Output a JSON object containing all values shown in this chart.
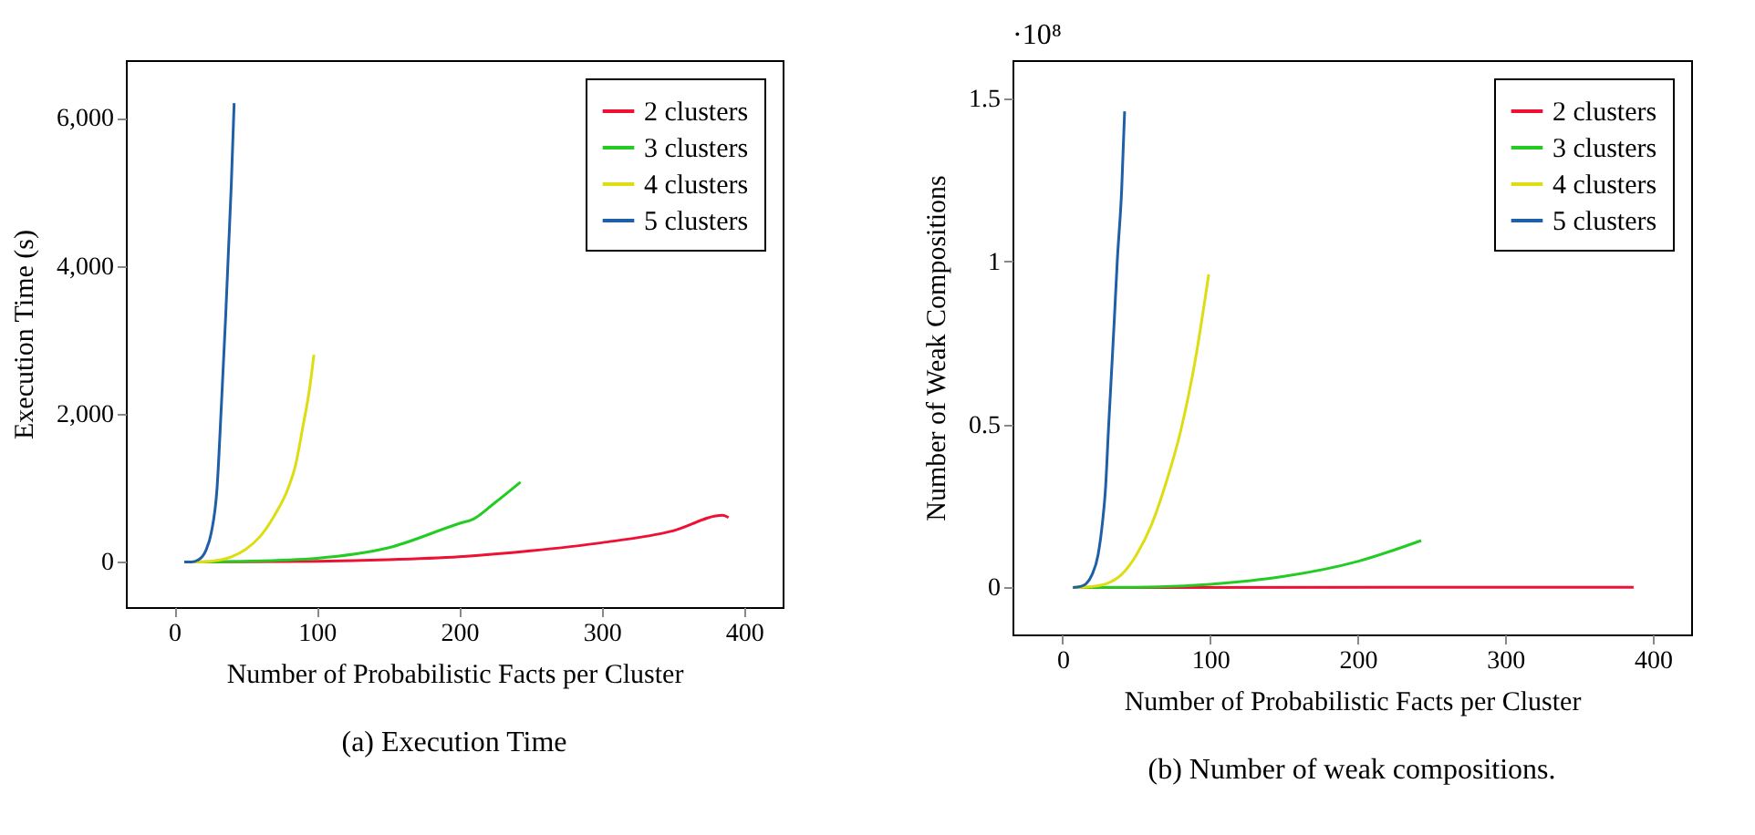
{
  "chart_data": [
    {
      "type": "line",
      "xlabel": "Number of Probabilistic Facts per Cluster",
      "ylabel": "Execution Time (s)",
      "annotations": [
        "(a) Execution Time"
      ],
      "xlim": [
        -34,
        427
      ],
      "ylim": [
        -610,
        6780
      ],
      "xticks": [
        0,
        100,
        200,
        300,
        400
      ],
      "yticks": [
        0,
        {
          "value": 2000,
          "label": "2,000"
        },
        {
          "value": 4000,
          "label": "4,000"
        },
        {
          "value": 6000,
          "label": "6,000"
        }
      ],
      "grid": false,
      "legend": "top right",
      "marker": "none",
      "line_style": "solid",
      "series": [
        {
          "name": "2 clusters",
          "color": "#ee1133",
          "x": [
            7,
            100,
            150,
            200,
            250,
            300,
            350,
            385,
            389
          ],
          "values": [
            0,
            10,
            30,
            70,
            150,
            260,
            420,
            630,
            600
          ]
        },
        {
          "name": "3 clusters",
          "color": "#22cc22",
          "x": [
            7,
            50,
            100,
            150,
            200,
            210,
            225,
            243
          ],
          "values": [
            0,
            10,
            50,
            190,
            520,
            580,
            800,
            1080
          ]
        },
        {
          "name": "4 clusters",
          "color": "#dddd11",
          "x": [
            7,
            20,
            30,
            40,
            50,
            60,
            70,
            80,
            85,
            90,
            95,
            98
          ],
          "values": [
            0,
            0,
            20,
            70,
            170,
            340,
            620,
            1000,
            1300,
            1800,
            2350,
            2800
          ]
        },
        {
          "name": "5 clusters",
          "color": "#1f5fa8",
          "x": [
            7,
            12,
            17,
            22,
            26,
            30,
            33,
            36,
            38,
            40,
            42
          ],
          "values": [
            0,
            0,
            30,
            150,
            400,
            1000,
            2100,
            3300,
            4200,
            5100,
            6200
          ]
        }
      ]
    },
    {
      "type": "line",
      "xlabel": "Number of Probabilistic Facts per Cluster",
      "ylabel": "Number of Weak Compositions",
      "annotations": [
        "·10⁸",
        "(b) Number of weak compositions."
      ],
      "xlim": [
        -34,
        426
      ],
      "ylim": [
        -0.144,
        1.617
      ],
      "xticks": [
        0,
        100,
        200,
        300,
        400
      ],
      "yticks": [
        0,
        0.5,
        1,
        1.5
      ],
      "grid": false,
      "legend": "top right",
      "marker": "none",
      "line_style": "solid",
      "series": [
        {
          "name": "2 clusters",
          "color": "#ee1133",
          "x": [
            7,
            387
          ],
          "values": [
            0,
            0.001
          ]
        },
        {
          "name": "3 clusters",
          "color": "#22cc22",
          "x": [
            7,
            50,
            100,
            150,
            200,
            243
          ],
          "values": [
            0,
            0.001,
            0.01,
            0.034,
            0.08,
            0.144
          ]
        },
        {
          "name": "4 clusters",
          "color": "#dddd11",
          "x": [
            7,
            20,
            30,
            40,
            50,
            60,
            70,
            80,
            90,
            99
          ],
          "values": [
            0,
            0.003,
            0.012,
            0.04,
            0.1,
            0.19,
            0.32,
            0.48,
            0.7,
            0.96
          ]
        },
        {
          "name": "5 clusters",
          "color": "#1f5fa8",
          "x": [
            7,
            12,
            16,
            20,
            24,
            27,
            29,
            31,
            33,
            35,
            37,
            40,
            42
          ],
          "values": [
            0,
            0.003,
            0.012,
            0.04,
            0.1,
            0.2,
            0.3,
            0.48,
            0.65,
            0.82,
            1.0,
            1.22,
            1.46
          ]
        }
      ]
    }
  ]
}
